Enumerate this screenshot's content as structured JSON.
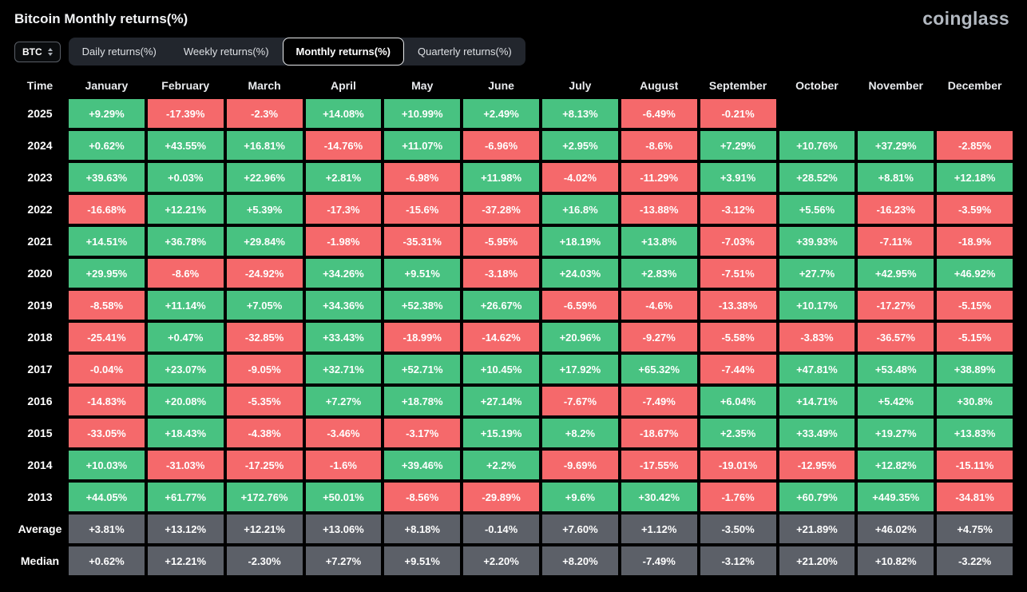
{
  "header": {
    "title": "Bitcoin Monthly returns(%)",
    "brand": "coinglass"
  },
  "controls": {
    "symbol": "BTC",
    "tabs": [
      {
        "label": "Daily returns(%)",
        "active": false
      },
      {
        "label": "Weekly returns(%)",
        "active": false
      },
      {
        "label": "Monthly returns(%)",
        "active": true
      },
      {
        "label": "Quarterly returns(%)",
        "active": false
      }
    ]
  },
  "colors": {
    "positive": "#48c281",
    "negative": "#f5696b",
    "summary": "#5c6068",
    "background": "#000000"
  },
  "chart_data": {
    "type": "heatmap",
    "title": "Bitcoin Monthly returns(%)",
    "unit": "%",
    "legend_position": "none",
    "columns": [
      "Time",
      "January",
      "February",
      "March",
      "April",
      "May",
      "June",
      "July",
      "August",
      "September",
      "October",
      "November",
      "December"
    ],
    "rows": [
      {
        "label": "2025",
        "type": "year",
        "values": [
          "+9.29%",
          "-17.39%",
          "-2.3%",
          "+14.08%",
          "+10.99%",
          "+2.49%",
          "+8.13%",
          "-6.49%",
          "-0.21%",
          null,
          null,
          null
        ]
      },
      {
        "label": "2024",
        "type": "year",
        "values": [
          "+0.62%",
          "+43.55%",
          "+16.81%",
          "-14.76%",
          "+11.07%",
          "-6.96%",
          "+2.95%",
          "-8.6%",
          "+7.29%",
          "+10.76%",
          "+37.29%",
          "-2.85%"
        ]
      },
      {
        "label": "2023",
        "type": "year",
        "values": [
          "+39.63%",
          "+0.03%",
          "+22.96%",
          "+2.81%",
          "-6.98%",
          "+11.98%",
          "-4.02%",
          "-11.29%",
          "+3.91%",
          "+28.52%",
          "+8.81%",
          "+12.18%"
        ]
      },
      {
        "label": "2022",
        "type": "year",
        "values": [
          "-16.68%",
          "+12.21%",
          "+5.39%",
          "-17.3%",
          "-15.6%",
          "-37.28%",
          "+16.8%",
          "-13.88%",
          "-3.12%",
          "+5.56%",
          "-16.23%",
          "-3.59%"
        ]
      },
      {
        "label": "2021",
        "type": "year",
        "values": [
          "+14.51%",
          "+36.78%",
          "+29.84%",
          "-1.98%",
          "-35.31%",
          "-5.95%",
          "+18.19%",
          "+13.8%",
          "-7.03%",
          "+39.93%",
          "-7.11%",
          "-18.9%"
        ]
      },
      {
        "label": "2020",
        "type": "year",
        "values": [
          "+29.95%",
          "-8.6%",
          "-24.92%",
          "+34.26%",
          "+9.51%",
          "-3.18%",
          "+24.03%",
          "+2.83%",
          "-7.51%",
          "+27.7%",
          "+42.95%",
          "+46.92%"
        ]
      },
      {
        "label": "2019",
        "type": "year",
        "values": [
          "-8.58%",
          "+11.14%",
          "+7.05%",
          "+34.36%",
          "+52.38%",
          "+26.67%",
          "-6.59%",
          "-4.6%",
          "-13.38%",
          "+10.17%",
          "-17.27%",
          "-5.15%"
        ]
      },
      {
        "label": "2018",
        "type": "year",
        "values": [
          "-25.41%",
          "+0.47%",
          "-32.85%",
          "+33.43%",
          "-18.99%",
          "-14.62%",
          "+20.96%",
          "-9.27%",
          "-5.58%",
          "-3.83%",
          "-36.57%",
          "-5.15%"
        ]
      },
      {
        "label": "2017",
        "type": "year",
        "values": [
          "-0.04%",
          "+23.07%",
          "-9.05%",
          "+32.71%",
          "+52.71%",
          "+10.45%",
          "+17.92%",
          "+65.32%",
          "-7.44%",
          "+47.81%",
          "+53.48%",
          "+38.89%"
        ]
      },
      {
        "label": "2016",
        "type": "year",
        "values": [
          "-14.83%",
          "+20.08%",
          "-5.35%",
          "+7.27%",
          "+18.78%",
          "+27.14%",
          "-7.67%",
          "-7.49%",
          "+6.04%",
          "+14.71%",
          "+5.42%",
          "+30.8%"
        ]
      },
      {
        "label": "2015",
        "type": "year",
        "values": [
          "-33.05%",
          "+18.43%",
          "-4.38%",
          "-3.46%",
          "-3.17%",
          "+15.19%",
          "+8.2%",
          "-18.67%",
          "+2.35%",
          "+33.49%",
          "+19.27%",
          "+13.83%"
        ]
      },
      {
        "label": "2014",
        "type": "year",
        "values": [
          "+10.03%",
          "-31.03%",
          "-17.25%",
          "-1.6%",
          "+39.46%",
          "+2.2%",
          "-9.69%",
          "-17.55%",
          "-19.01%",
          "-12.95%",
          "+12.82%",
          "-15.11%"
        ]
      },
      {
        "label": "2013",
        "type": "year",
        "values": [
          "+44.05%",
          "+61.77%",
          "+172.76%",
          "+50.01%",
          "-8.56%",
          "-29.89%",
          "+9.6%",
          "+30.42%",
          "-1.76%",
          "+60.79%",
          "+449.35%",
          "-34.81%"
        ]
      },
      {
        "label": "Average",
        "type": "summary",
        "values": [
          "+3.81%",
          "+13.12%",
          "+12.21%",
          "+13.06%",
          "+8.18%",
          "-0.14%",
          "+7.60%",
          "+1.12%",
          "-3.50%",
          "+21.89%",
          "+46.02%",
          "+4.75%"
        ]
      },
      {
        "label": "Median",
        "type": "summary",
        "values": [
          "+0.62%",
          "+12.21%",
          "-2.30%",
          "+7.27%",
          "+9.51%",
          "+2.20%",
          "+8.20%",
          "-7.49%",
          "-3.12%",
          "+21.20%",
          "+10.82%",
          "-3.22%"
        ]
      }
    ]
  }
}
